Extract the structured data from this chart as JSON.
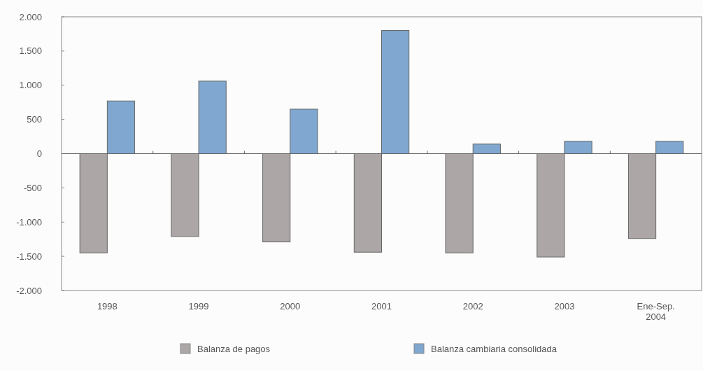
{
  "chart_data": {
    "type": "bar",
    "categories": [
      "1998",
      "1999",
      "2000",
      "2001",
      "2002",
      "2003",
      "Ene-Sep.\n2004"
    ],
    "series": [
      {
        "name": "Balanza de pagos",
        "color": "#aca6a6",
        "values": [
          -1450,
          -1210,
          -1290,
          -1440,
          -1450,
          -1510,
          -1240
        ]
      },
      {
        "name": "Balanza cambiaria consolidada",
        "color": "#7fa7cf",
        "values": [
          770,
          1060,
          650,
          1800,
          140,
          180,
          180
        ]
      }
    ],
    "ylim": [
      -2000,
      2000
    ],
    "yticks": [
      {
        "value": -2000,
        "label": "-2.000"
      },
      {
        "value": -1500,
        "label": "-1.500"
      },
      {
        "value": -1000,
        "label": "-1.000"
      },
      {
        "value": -500,
        "label": "-500"
      },
      0,
      500,
      {
        "value": 1000,
        "label": "1.000"
      },
      {
        "value": 1500,
        "label": "1.500"
      },
      {
        "value": 2000,
        "label": "2.000"
      }
    ],
    "legend": "bottom"
  }
}
